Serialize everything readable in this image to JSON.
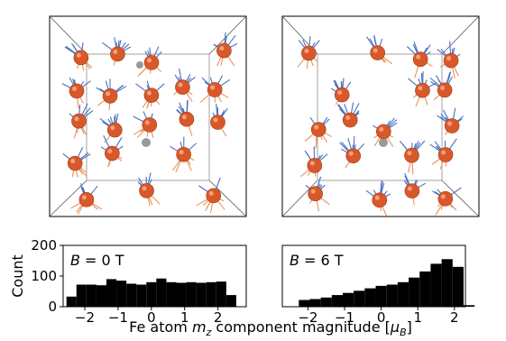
{
  "chart_data": [
    {
      "type": "histogram",
      "annotation": {
        "symbol": "B",
        "text": "=  0 T"
      },
      "ylabel": "Count",
      "bins": [
        -2.55,
        -2.25,
        -1.95,
        -1.65,
        -1.35,
        -1.05,
        -0.75,
        -0.45,
        -0.15,
        0.15,
        0.45,
        0.75,
        1.05,
        1.35,
        1.65,
        1.95,
        2.25,
        2.55
      ],
      "counts": [
        33,
        72,
        72,
        70,
        90,
        85,
        75,
        72,
        80,
        92,
        80,
        78,
        80,
        78,
        80,
        82,
        38
      ],
      "color": "#000000",
      "xlim": [
        -2.65,
        2.85
      ],
      "xticks": [
        {
          "value": -2,
          "label": "−2"
        },
        {
          "value": -1,
          "label": "−1"
        },
        0,
        1,
        2
      ],
      "ylim": [
        0,
        200
      ],
      "yticks": [
        0,
        100,
        200
      ]
    },
    {
      "type": "histogram",
      "annotation": {
        "symbol": "B",
        "text": "=  6 T"
      },
      "bins": [
        -2.55,
        -2.25,
        -1.95,
        -1.65,
        -1.35,
        -1.05,
        -0.75,
        -0.45,
        -0.15,
        0.15,
        0.45,
        0.75,
        1.05,
        1.35,
        1.65,
        1.95,
        2.25,
        2.55
      ],
      "counts": [
        0,
        22,
        25,
        30,
        38,
        45,
        52,
        60,
        68,
        72,
        80,
        95,
        115,
        140,
        155,
        130,
        5
      ],
      "color": "#000000",
      "xlim": [
        -2.7,
        2.3
      ],
      "xticks": [
        {
          "value": -2,
          "label": "−2"
        },
        {
          "value": -1,
          "label": "−1"
        },
        0,
        1,
        2
      ],
      "ylim": [
        0,
        200
      ]
    }
  ],
  "figure": {
    "xlabel": [
      {
        "text": "Fe atom ",
        "style": "normal"
      },
      {
        "text": "m",
        "style": "italic"
      },
      {
        "text": "z",
        "style": "sub-italic"
      },
      {
        "text": " component magnitude [",
        "style": "normal"
      },
      {
        "text": "μ",
        "style": "italic"
      },
      {
        "text": "B",
        "style": "sub-italic"
      },
      {
        "text": "]",
        "style": "normal"
      }
    ]
  }
}
